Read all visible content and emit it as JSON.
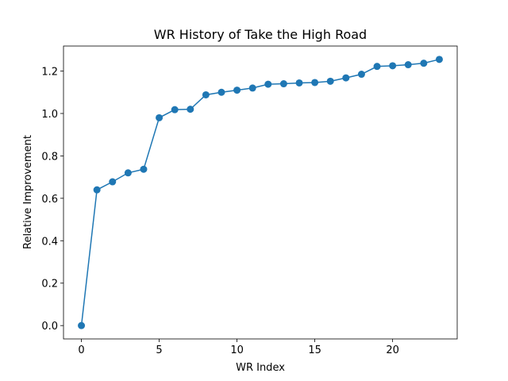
{
  "chart_data": {
    "type": "line",
    "title": "WR History of Take the High Road",
    "xlabel": "WR Index",
    "ylabel": "Relative Improvement",
    "xlim": [
      -1.15,
      24.15
    ],
    "ylim": [
      -0.063,
      1.318
    ],
    "xticks": [
      0,
      5,
      10,
      15,
      20
    ],
    "xtick_labels": [
      "0",
      "5",
      "10",
      "15",
      "20"
    ],
    "yticks": [
      0.0,
      0.2,
      0.4,
      0.6,
      0.8,
      1.0,
      1.2
    ],
    "ytick_labels": [
      "0.0",
      "0.2",
      "0.4",
      "0.6",
      "0.8",
      "1.0",
      "1.2"
    ],
    "grid": false,
    "series": [
      {
        "color": "#1f77b4",
        "marker": "circle",
        "x": [
          0,
          1,
          2,
          3,
          4,
          5,
          6,
          7,
          8,
          9,
          10,
          11,
          12,
          13,
          14,
          15,
          16,
          17,
          18,
          19,
          20,
          21,
          22,
          23
        ],
        "y": [
          0.0,
          0.64,
          0.678,
          0.72,
          0.737,
          0.98,
          1.018,
          1.02,
          1.088,
          1.1,
          1.11,
          1.12,
          1.138,
          1.14,
          1.144,
          1.146,
          1.152,
          1.168,
          1.185,
          1.222,
          1.225,
          1.23,
          1.237,
          1.255
        ]
      }
    ]
  }
}
